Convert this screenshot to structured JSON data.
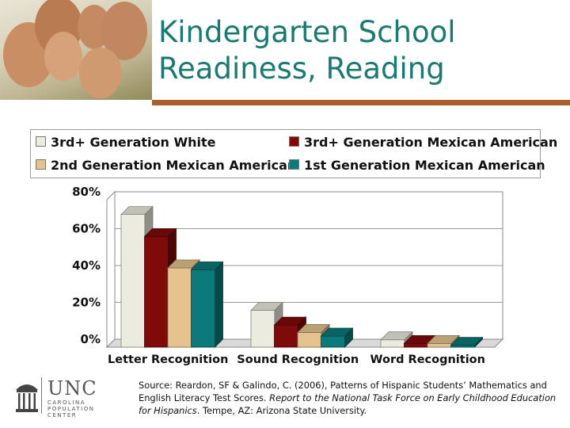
{
  "title": "Kindergarten School Readiness, Reading",
  "legend": [
    {
      "label": "3rd+ Generation White",
      "color": "#ecebdf"
    },
    {
      "label": "3rd+ Generation Mexican American",
      "color": "#7f0a0a"
    },
    {
      "label": "2nd Generation Mexican American",
      "color": "#e5c38f"
    },
    {
      "label": "1st Generation Mexican American",
      "color": "#0c7a7a"
    }
  ],
  "chart_data": {
    "type": "bar",
    "categories": [
      "Letter Recognition",
      "Sound Recognition",
      "Word Recognition"
    ],
    "series": [
      {
        "name": "3rd+ Generation White",
        "values": [
          72,
          20,
          4
        ],
        "color": "#ecebdf"
      },
      {
        "name": "3rd+ Generation Mexican American",
        "values": [
          60,
          12,
          2
        ],
        "color": "#7f0a0a"
      },
      {
        "name": "2nd Generation Mexican American",
        "values": [
          43,
          8,
          2
        ],
        "color": "#e5c38f"
      },
      {
        "name": "1st Generation Mexican American",
        "values": [
          42,
          6,
          1
        ],
        "color": "#0c7a7a"
      }
    ],
    "yticks": [
      "0%",
      "20%",
      "40%",
      "60%",
      "80%"
    ],
    "ylim": [
      0,
      80
    ],
    "grid": true,
    "legend_position": "top"
  },
  "footer": {
    "logo_text": "UNC",
    "logo_sub": [
      "CAROLINA",
      "POPULATION",
      "CENTER"
    ],
    "source_plain_1": "Source: Reardon, SF & Galindo, C. (2006), Patterns of Hispanic Students’ Mathematics and English Literacy Test Scores. ",
    "source_italic": "Report to the National Task Force on Early Childhood Education for Hispanics",
    "source_plain_2": ". Tempe, AZ: Arizona State University."
  }
}
